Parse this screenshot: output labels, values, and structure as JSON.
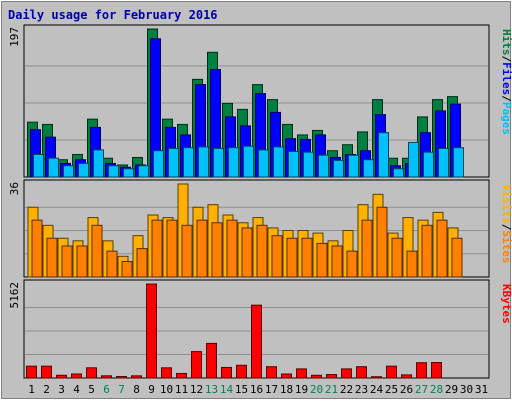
{
  "chart_data": {
    "type": "bar",
    "title": "Daily usage for February 2016",
    "categories": [
      "1",
      "2",
      "3",
      "4",
      "5",
      "6",
      "7",
      "8",
      "9",
      "10",
      "11",
      "12",
      "13",
      "14",
      "15",
      "16",
      "17",
      "18",
      "19",
      "20",
      "21",
      "22",
      "23",
      "24",
      "25",
      "26",
      "27",
      "28",
      "29",
      "30",
      "31"
    ],
    "weekend_days": [
      "6",
      "7",
      "13",
      "14",
      "20",
      "21",
      "27",
      "28"
    ],
    "panels": [
      {
        "name": "hits_files_pages",
        "ymax_label": "197",
        "ymax": 197,
        "legend": [
          "Pages",
          "/",
          "Files",
          "/",
          "Hits"
        ],
        "series": [
          {
            "name": "Hits",
            "color": "#008040",
            "values": [
              73,
              70,
              23,
              30,
              77,
              25,
              16,
              26,
              197,
              77,
              70,
              130,
              166,
              98,
              90,
              123,
              103,
              70,
              56,
              62,
              35,
              43,
              60,
              103,
              25,
              25,
              80,
              103,
              107,
              null,
              null
            ]
          },
          {
            "name": "Files",
            "color": "#0000ff",
            "values": [
              63,
              53,
              18,
              23,
              66,
              18,
              13,
              16,
              184,
              66,
              56,
              123,
              143,
              80,
              68,
              111,
              86,
              51,
              50,
              56,
              26,
              30,
              35,
              83,
              15,
              18,
              59,
              88,
              97,
              null,
              null
            ]
          },
          {
            "name": "Pages",
            "color": "#00c0ff",
            "values": [
              30,
              25,
              15,
              18,
              36,
              15,
              11,
              15,
              35,
              38,
              39,
              40,
              38,
              39,
              41,
              36,
              40,
              34,
              33,
              29,
              22,
              29,
              23,
              59,
              11,
              46,
              33,
              38,
              39,
              null,
              null
            ]
          }
        ]
      },
      {
        "name": "visits_sites",
        "ymax_label": "36",
        "ymax": 36,
        "legend": [
          "Sites",
          "/",
          "Visits"
        ],
        "series": [
          {
            "name": "Visits",
            "color": "#ffb000",
            "values": [
              27,
              20,
              15,
              14,
              23,
              14,
              8,
              16,
              24,
              23,
              36,
              27,
              28,
              24,
              21,
              23,
              19,
              18,
              18,
              17,
              14,
              18,
              28,
              32,
              17,
              23,
              22,
              25,
              19,
              null,
              null
            ]
          },
          {
            "name": "Sites",
            "color": "#ff8000",
            "values": [
              22,
              15,
              12,
              12,
              20,
              10,
              6,
              11,
              22,
              22,
              20,
              22,
              21,
              22,
              19,
              20,
              16,
              15,
              15,
              13,
              12,
              10,
              22,
              27,
              15,
              10,
              20,
              22,
              15,
              null,
              null
            ]
          }
        ]
      },
      {
        "name": "kbytes",
        "ymax_label": "5162",
        "ymax": 5162,
        "legend": [
          "KBytes"
        ],
        "series": [
          {
            "name": "KBytes",
            "color": "#ff0000",
            "values": [
              650,
              650,
              150,
              220,
              560,
              120,
              80,
              120,
              5162,
              560,
              250,
              1450,
              1900,
              580,
              700,
              4000,
              620,
              220,
              500,
              150,
              190,
              500,
              620,
              70,
              650,
              170,
              840,
              850,
              0,
              null,
              null
            ]
          }
        ]
      }
    ]
  },
  "colors": {
    "frame_bg": "#c0c0c0",
    "plot_bg": "#c0c0c0",
    "gridline": "#909090",
    "title": "#0000aa",
    "weekday_label": "#000000",
    "weekend_label": "#00805c"
  }
}
